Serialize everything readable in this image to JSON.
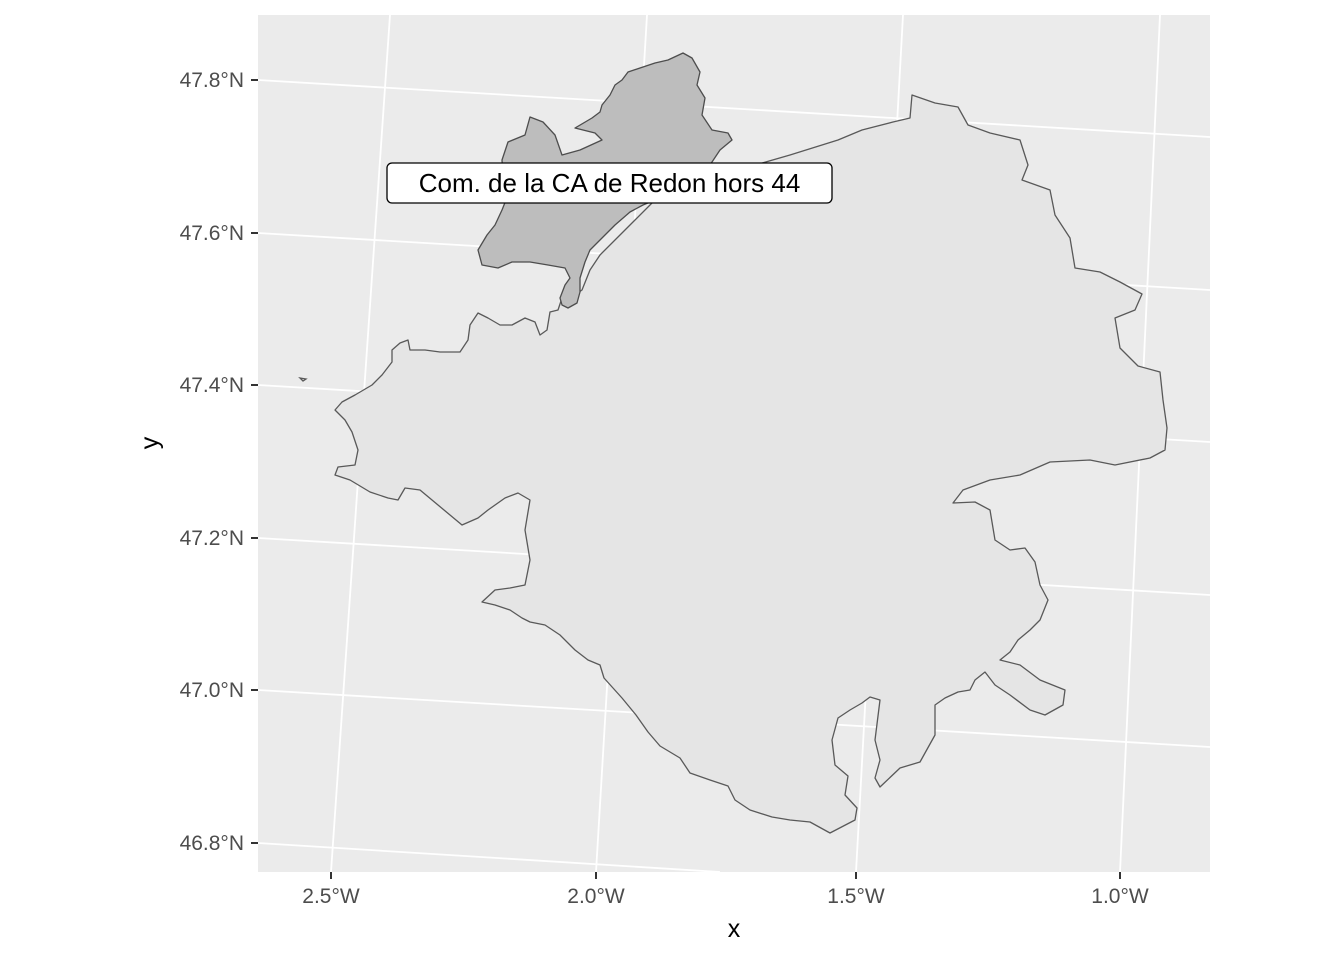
{
  "map": {
    "x_axis_title": "x",
    "y_axis_title": "y",
    "x_ticks": [
      "2.5°W",
      "2.0°W",
      "1.5°W",
      "1.0°W"
    ],
    "y_ticks": [
      "47.8°N",
      "47.6°N",
      "47.4°N",
      "47.2°N",
      "47.0°N",
      "46.8°N"
    ],
    "label": "Com. de la CA de Redon hors 44"
  },
  "colors": {
    "panel_background": "#ebebeb",
    "main_region_fill": "#e5e5e5",
    "highlight_region_fill": "#bdbdbd",
    "border": "#595959",
    "grid": "#ffffff"
  }
}
